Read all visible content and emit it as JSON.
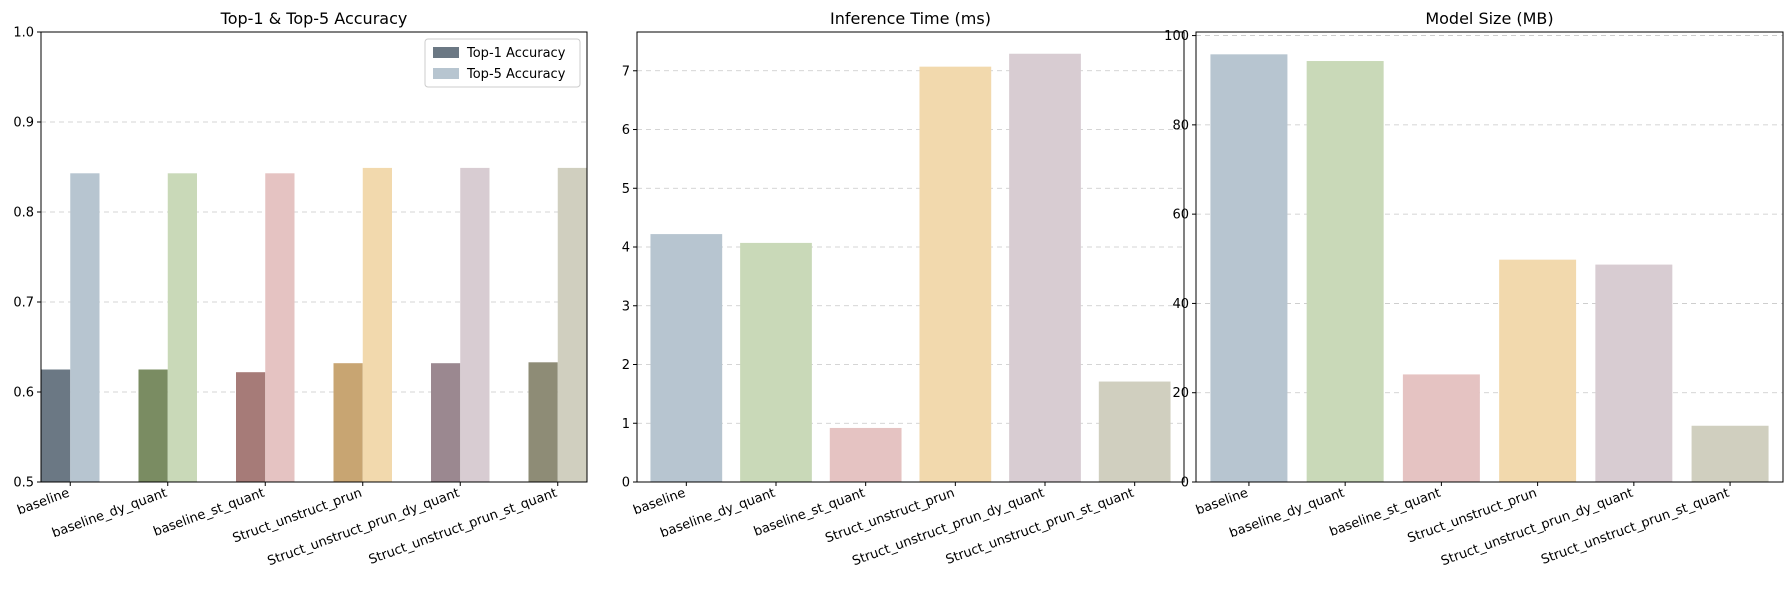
{
  "chart_data": [
    {
      "type": "bar",
      "title": "Top-1 & Top-5 Accuracy",
      "xlabel": "",
      "ylabel": "",
      "categories": [
        "baseline",
        "baseline_dy_quant",
        "baseline_st_quant",
        "Struct_unstruct_prun",
        "Struct_unstruct_prun_dy_quant",
        "Struct_unstruct_prun_st_quant"
      ],
      "series": [
        {
          "name": "Top-1 Accuracy",
          "values": [
            0.625,
            0.625,
            0.622,
            0.632,
            0.632,
            0.633
          ],
          "colors": [
            "#6b7884",
            "#7a8c62",
            "#a67b78",
            "#c8a572",
            "#9b8890",
            "#8e8c76"
          ]
        },
        {
          "name": "Top-5 Accuracy",
          "values": [
            0.843,
            0.843,
            0.843,
            0.849,
            0.849,
            0.849
          ],
          "colors": [
            "#b7c5d0",
            "#c9d9b8",
            "#e5c3c2",
            "#f2d9ad",
            "#d8ccd2",
            "#d0cfbf"
          ]
        }
      ],
      "ylim": [
        0.5,
        1.0
      ],
      "yticks": [
        "0.5",
        "0.6",
        "0.7",
        "0.8",
        "0.9",
        "1.0"
      ],
      "grid": true,
      "legend": "top-right"
    },
    {
      "type": "bar",
      "title": "Inference Time (ms)",
      "xlabel": "",
      "ylabel": "",
      "categories": [
        "baseline",
        "baseline_dy_quant",
        "baseline_st_quant",
        "Struct_unstruct_prun",
        "Struct_unstruct_prun_dy_quant",
        "Struct_unstruct_prun_st_quant"
      ],
      "values": [
        4.22,
        4.07,
        0.92,
        7.07,
        7.29,
        1.71
      ],
      "colors": [
        "#b7c5d0",
        "#c9d9b8",
        "#e5c3c2",
        "#f2d9ad",
        "#d8ccd2",
        "#d0cfbf"
      ],
      "ylim": [
        0,
        7.66
      ],
      "yticks": [
        "0",
        "1",
        "2",
        "3",
        "4",
        "5",
        "6",
        "7"
      ],
      "grid": true
    },
    {
      "type": "bar",
      "title": "Model Size (MB)",
      "xlabel": "",
      "ylabel": "",
      "categories": [
        "baseline",
        "baseline_dy_quant",
        "baseline_st_quant",
        "Struct_unstruct_prun",
        "Struct_unstruct_prun_dy_quant",
        "Struct_unstruct_prun_st_quant"
      ],
      "values": [
        95.8,
        94.3,
        24.1,
        49.8,
        48.7,
        12.6
      ],
      "colors": [
        "#b7c5d0",
        "#c9d9b8",
        "#e5c3c2",
        "#f2d9ad",
        "#d8ccd2",
        "#d0cfbf"
      ],
      "ylim": [
        0,
        100.8
      ],
      "yticks": [
        "0",
        "20",
        "40",
        "60",
        "80",
        "100"
      ],
      "grid": true
    }
  ]
}
